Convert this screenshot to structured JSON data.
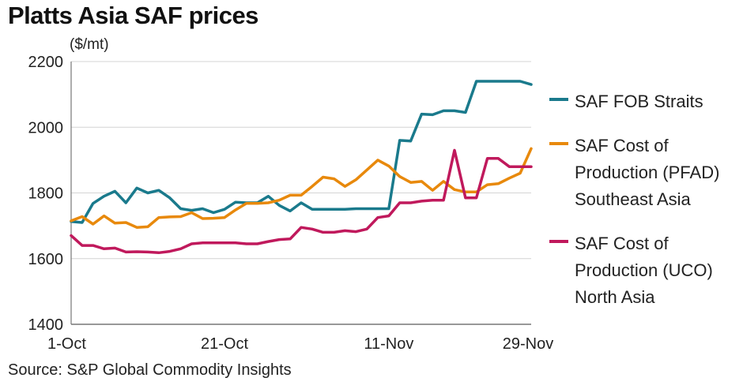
{
  "title": "Platts Asia SAF prices",
  "unit_label": "($/mt)",
  "source": "Source: S&P Global Commodity Insights",
  "chart_data": {
    "type": "line",
    "ylim": [
      1400,
      2200
    ],
    "y_ticks": [
      1400,
      1600,
      1800,
      2000,
      2200
    ],
    "x_tick_labels": [
      "1-Oct",
      "21-Oct",
      "11-Nov",
      "29-Nov"
    ],
    "x_tick_index": [
      0,
      14,
      29,
      42
    ],
    "x_count": 43,
    "grid": "horizontal",
    "legend_position": "right",
    "series": [
      {
        "name": "SAF FOB Straits",
        "color": "#1a7a8c",
        "values": [
          1713,
          1710,
          1768,
          1790,
          1805,
          1770,
          1815,
          1800,
          1808,
          1785,
          1752,
          1747,
          1752,
          1740,
          1750,
          1772,
          1770,
          1770,
          1790,
          1762,
          1745,
          1770,
          1750,
          1750,
          1750,
          1750,
          1752,
          1752,
          1752,
          1752,
          1960,
          1958,
          2040,
          2038,
          2050,
          2050,
          2045,
          2140,
          2140,
          2140,
          2140,
          2140,
          2130
        ]
      },
      {
        "name": "SAF Cost of Production (PFAD) Southeast Asia",
        "color": "#e8890c",
        "values": [
          1715,
          1728,
          1705,
          1730,
          1708,
          1710,
          1695,
          1697,
          1725,
          1727,
          1728,
          1740,
          1722,
          1723,
          1725,
          1748,
          1768,
          1768,
          1770,
          1778,
          1793,
          1793,
          1820,
          1848,
          1843,
          1820,
          1840,
          1870,
          1900,
          1882,
          1850,
          1832,
          1835,
          1808,
          1835,
          1810,
          1803,
          1803,
          1825,
          1828,
          1845,
          1860,
          1935
        ]
      },
      {
        "name": "SAF Cost of Production (UCO) North Asia",
        "color": "#c0195c",
        "values": [
          1670,
          1640,
          1640,
          1630,
          1632,
          1620,
          1621,
          1620,
          1618,
          1622,
          1630,
          1645,
          1648,
          1648,
          1648,
          1648,
          1645,
          1645,
          1652,
          1658,
          1660,
          1695,
          1690,
          1680,
          1680,
          1685,
          1682,
          1690,
          1725,
          1730,
          1770,
          1770,
          1775,
          1778,
          1778,
          1930,
          1785,
          1785,
          1905,
          1905,
          1880,
          1880,
          1880
        ]
      }
    ]
  }
}
